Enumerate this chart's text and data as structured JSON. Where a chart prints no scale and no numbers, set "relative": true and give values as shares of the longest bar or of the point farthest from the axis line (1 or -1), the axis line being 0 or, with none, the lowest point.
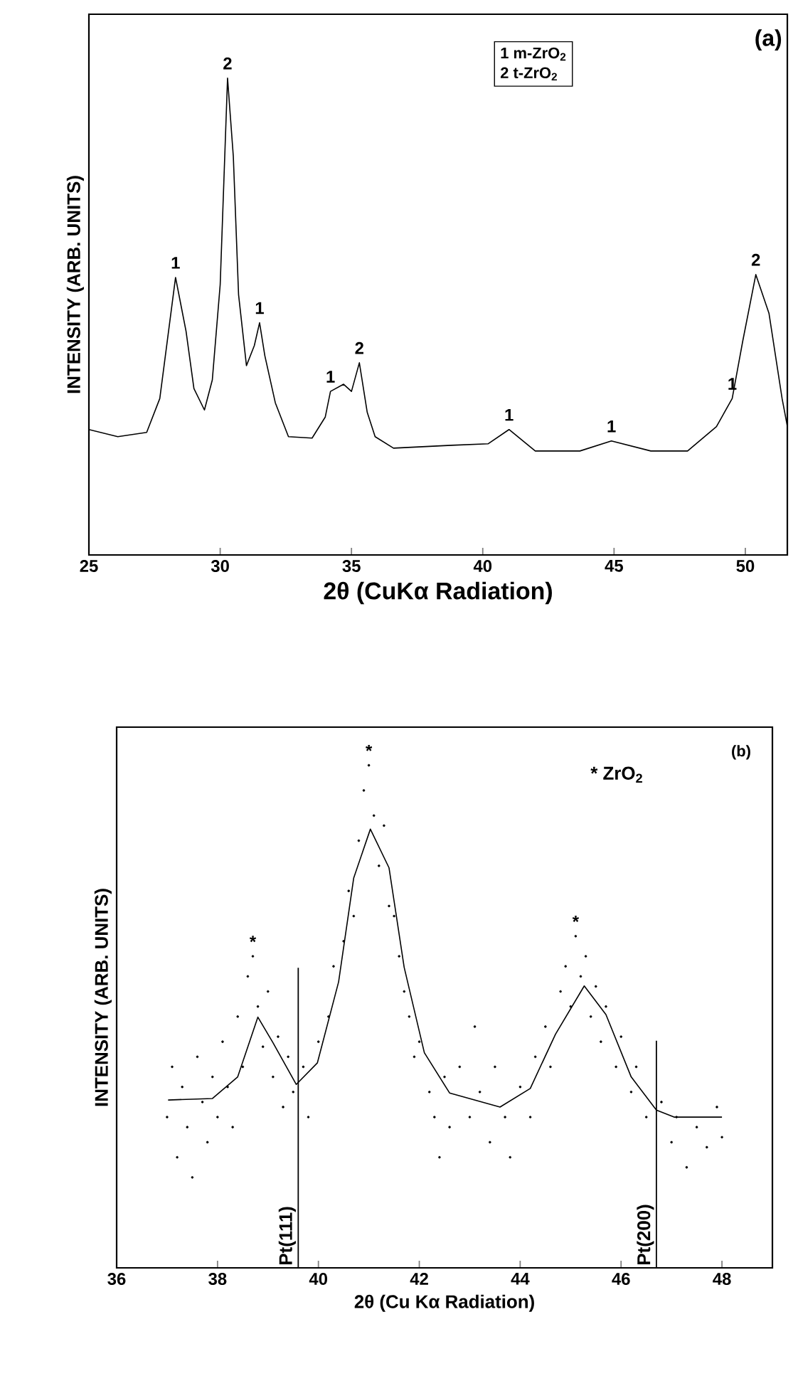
{
  "chart_data": [
    {
      "type": "line",
      "xlabel": "2θ (CuKα Radiation)",
      "ylabel": "INTENSITY (ARB. UNITS)",
      "relative": true,
      "xlim": [
        25,
        51.6
      ],
      "xticks": [
        25,
        30,
        35,
        40,
        45,
        50
      ],
      "tick_labels": "x",
      "series": [
        {
          "color": "#000000",
          "marker": "none",
          "x": [
            25.0,
            26.1,
            27.2,
            27.7,
            28.3,
            28.7,
            29.0,
            29.4,
            29.7,
            30.0,
            30.28,
            30.5,
            30.7,
            31.0,
            31.3,
            31.5,
            31.7,
            32.1,
            32.6,
            33.5,
            34.0,
            34.2,
            34.7,
            35.0,
            35.3,
            35.6,
            35.9,
            36.6,
            38.8,
            40.2,
            41.0,
            42.0,
            43.7,
            44.9,
            46.4,
            47.8,
            48.9,
            49.5,
            49.9,
            50.4,
            50.9,
            51.4,
            51.6
          ],
          "values": [
            0.263,
            0.248,
            0.257,
            0.328,
            0.582,
            0.469,
            0.349,
            0.304,
            0.367,
            0.567,
            1.0,
            0.836,
            0.546,
            0.397,
            0.439,
            0.487,
            0.418,
            0.319,
            0.248,
            0.245,
            0.289,
            0.343,
            0.358,
            0.343,
            0.403,
            0.299,
            0.248,
            0.224,
            0.23,
            0.233,
            0.263,
            0.218,
            0.218,
            0.239,
            0.218,
            0.218,
            0.269,
            0.328,
            0.448,
            0.588,
            0.507,
            0.328,
            0.27
          ]
        }
      ],
      "annotations": [
        "1  m-ZrO$_{2}$",
        "2  t-ZrO$_{2}$",
        "(a)",
        {
          "text": "1",
          "x": 28.3,
          "y": 0.582
        },
        {
          "text": "2",
          "x": 30.28,
          "y": 1.0
        },
        {
          "text": "1",
          "x": 31.5,
          "y": 0.487
        },
        {
          "text": "1",
          "x": 34.2,
          "y": 0.343
        },
        {
          "text": "2",
          "x": 35.3,
          "y": 0.403
        },
        {
          "text": "1",
          "x": 41.0,
          "y": 0.263
        },
        {
          "text": "1",
          "x": 44.9,
          "y": 0.239
        },
        {
          "text": "1",
          "x": 49.5,
          "y": 0.328
        },
        {
          "text": "2",
          "x": 50.4,
          "y": 0.588
        }
      ]
    },
    {
      "type": "scatter",
      "xlabel": "2θ (Cu Kα Radiation)",
      "ylabel": "INTENSITY (ARB. UNITS)",
      "relative": true,
      "xlim": [
        36,
        49
      ],
      "xticks": [
        36,
        38,
        40,
        42,
        44,
        46,
        48
      ],
      "tick_labels": "x",
      "series": [
        {
          "type": "scatter",
          "color": "#000000",
          "marker": "circle",
          "x": [
            37.0,
            37.1,
            37.2,
            37.3,
            37.4,
            37.5,
            37.6,
            37.7,
            37.8,
            37.9,
            38.0,
            38.1,
            38.2,
            38.3,
            38.4,
            38.5,
            38.6,
            38.7,
            38.8,
            38.9,
            39.0,
            39.1,
            39.2,
            39.3,
            39.4,
            39.5,
            39.7,
            39.8,
            40.0,
            40.2,
            40.3,
            40.5,
            40.6,
            40.7,
            40.8,
            40.9,
            41.0,
            41.1,
            41.2,
            41.3,
            41.4,
            41.5,
            41.6,
            41.7,
            41.8,
            41.9,
            42.0,
            42.2,
            42.3,
            42.4,
            42.5,
            42.6,
            42.8,
            43.0,
            43.1,
            43.2,
            43.4,
            43.5,
            43.7,
            43.8,
            44.0,
            44.2,
            44.3,
            44.5,
            44.6,
            44.8,
            44.9,
            45.0,
            45.1,
            45.2,
            45.3,
            45.4,
            45.5,
            45.6,
            45.7,
            45.9,
            46.0,
            46.2,
            46.3,
            46.5,
            46.8,
            47.0,
            47.1,
            47.3,
            47.5,
            47.7,
            47.9,
            48.0
          ],
          "values": [
            0.3,
            0.4,
            0.22,
            0.36,
            0.28,
            0.18,
            0.42,
            0.33,
            0.25,
            0.38,
            0.3,
            0.45,
            0.36,
            0.28,
            0.5,
            0.4,
            0.58,
            0.62,
            0.52,
            0.44,
            0.55,
            0.38,
            0.46,
            0.32,
            0.42,
            0.35,
            0.4,
            0.3,
            0.45,
            0.5,
            0.6,
            0.65,
            0.75,
            0.7,
            0.85,
            0.95,
            1.0,
            0.9,
            0.8,
            0.88,
            0.72,
            0.7,
            0.62,
            0.55,
            0.5,
            0.42,
            0.45,
            0.35,
            0.3,
            0.22,
            0.38,
            0.28,
            0.4,
            0.3,
            0.48,
            0.35,
            0.25,
            0.4,
            0.3,
            0.22,
            0.36,
            0.3,
            0.42,
            0.48,
            0.4,
            0.55,
            0.6,
            0.52,
            0.66,
            0.58,
            0.62,
            0.5,
            0.56,
            0.45,
            0.52,
            0.4,
            0.46,
            0.35,
            0.4,
            0.3,
            0.33,
            0.25,
            0.3,
            0.2,
            0.28,
            0.24,
            0.32,
            0.26
          ]
        },
        {
          "type": "line",
          "color": "#000000",
          "marker": "none",
          "x": [
            37.02,
            37.9,
            38.4,
            38.8,
            39.1,
            39.56,
            39.98,
            40.4,
            40.7,
            41.03,
            41.4,
            41.7,
            42.1,
            42.6,
            43.6,
            44.2,
            44.7,
            45.27,
            45.7,
            46.2,
            46.7,
            47.05,
            48.0
          ],
          "values": [
            0.334,
            0.337,
            0.38,
            0.499,
            0.448,
            0.365,
            0.408,
            0.569,
            0.776,
            0.873,
            0.796,
            0.598,
            0.428,
            0.348,
            0.32,
            0.357,
            0.465,
            0.561,
            0.504,
            0.38,
            0.314,
            0.3,
            0.3
          ]
        }
      ],
      "ref_lines": [
        {
          "axis": "x",
          "value": 39.6,
          "label": "Pt(111)",
          "color": "#000000"
        },
        {
          "axis": "x",
          "value": 46.7,
          "label": "Pt(200)",
          "color": "#000000"
        }
      ],
      "annotations": [
        "* ZrO$_{2}$",
        "(b)",
        {
          "text": "*",
          "x": 38.7,
          "y": 0.62
        },
        {
          "text": "*",
          "x": 41.0,
          "y": 1.0
        },
        {
          "text": "*",
          "x": 45.1,
          "y": 0.66
        }
      ]
    }
  ]
}
